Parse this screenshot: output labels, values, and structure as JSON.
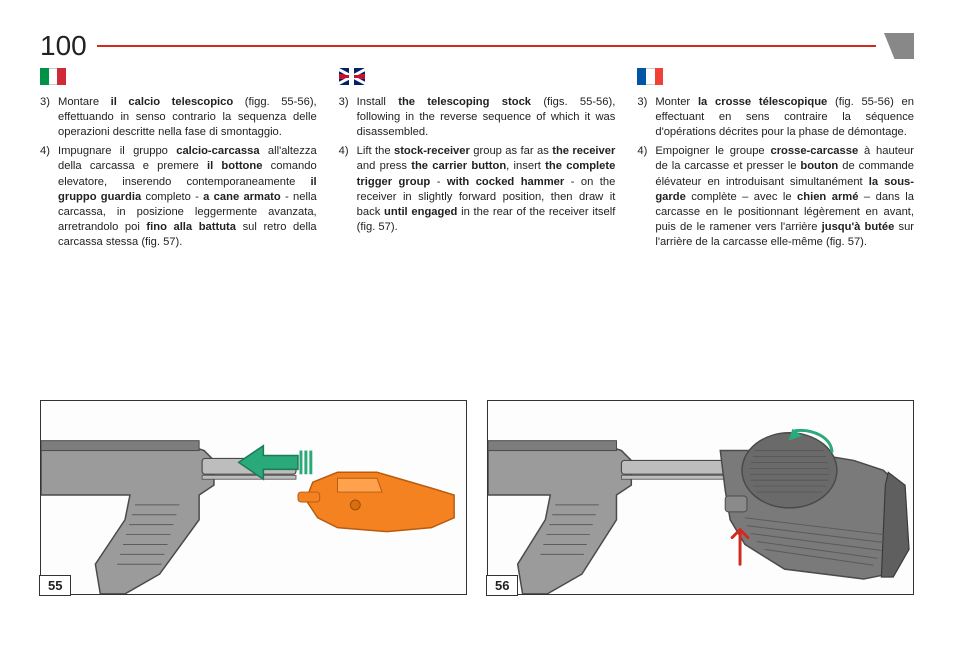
{
  "page_number": "100",
  "accent_color": "#d12b1f",
  "columns": {
    "it": {
      "flag": "it",
      "items": [
        {
          "num": "3)",
          "html": "Montare <strong>il calcio telescopico</strong> (figg. 55-56), effettuando in senso contrario la sequenza delle operazioni descritte nella fase di smontaggio."
        },
        {
          "num": "4)",
          "html": "Impugnare il gruppo <strong>calcio-carcassa</strong> all'altezza della carcassa e premere <strong>il bottone</strong> comando elevatore, inserendo contemporaneamente <strong>il gruppo guardia</strong> completo - <strong>a cane armato</strong> - nella carcassa, in posizione leggermente avanzata, arretrandolo poi <strong>fino alla battuta</strong> sul retro della carcassa stessa (fig. 57)."
        }
      ]
    },
    "en": {
      "flag": "uk",
      "items": [
        {
          "num": "3)",
          "html": "Install <strong>the telescoping stock</strong> (figs. 55-56), following in the reverse sequence of which it was disassembled."
        },
        {
          "num": "4)",
          "html": "Lift the <strong>stock-receiver</strong> group as far as <strong>the receiver</strong> and press <strong>the carrier button</strong>, insert <strong>the complete trigger group</strong> - <strong>with cocked hammer</strong> - on the receiver in slightly forward position, then draw it back <strong>until engaged</strong> in the rear of the receiver itself (fig. 57)."
        }
      ]
    },
    "fr": {
      "flag": "fr",
      "items": [
        {
          "num": "3)",
          "html": "Monter <strong>la crosse télescopique</strong> (fig. 55-56) en effectuant en sens contraire la séquence d'opérations décrites pour la phase de démontage."
        },
        {
          "num": "4)",
          "html": "Empoigner le groupe <strong>crosse-carcasse</strong> à hauteur de la carcasse et presser le <strong>bouton</strong> de commande élévateur en introduisant simultanément <strong>la sous-garde</strong> complète – avec le <strong>chien armé</strong> – dans la carcasse en le positionnant légèrement en avant, puis de le ramener vers l'arrière <strong>jusqu'à butée</strong> sur l'arrière de la carcasse elle-même (fig. 57)."
        }
      ]
    }
  },
  "figures": {
    "left": {
      "label": "55",
      "arrow_color": "#2aa97a",
      "insert_color": "#f58220",
      "stock_fill": "#9b9b9b",
      "stock_stroke": "#4a4a4a",
      "tube_fill": "#bdbdbd"
    },
    "right": {
      "label": "56",
      "arrow_up_color": "#d12b1f",
      "arrow_rotate_color": "#2aa97a",
      "stock_fill": "#9b9b9b",
      "stock_stroke": "#4a4a4a",
      "grip_fill": "#7a7a7a",
      "grip_texture": "#5c5c5c",
      "pad_fill": "#6d6d6d"
    }
  }
}
